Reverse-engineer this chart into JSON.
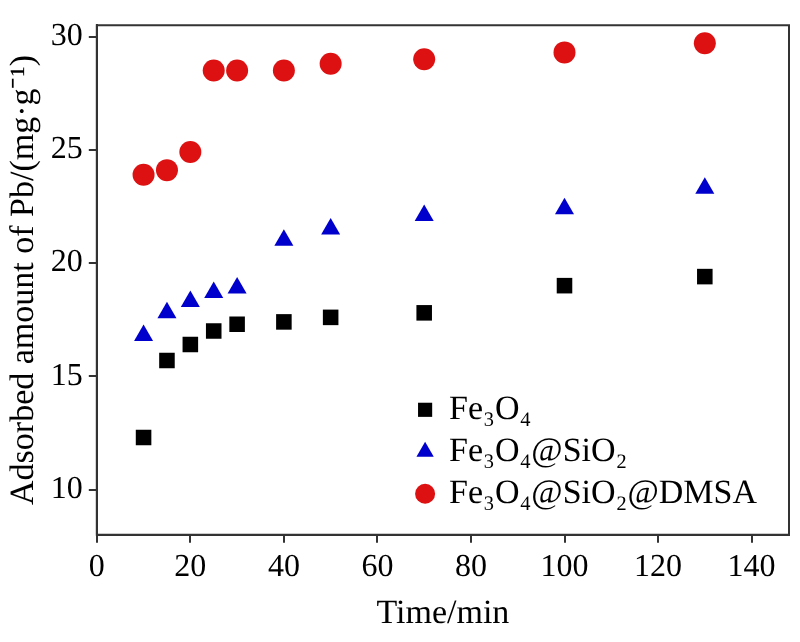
{
  "chart_data": {
    "type": "scatter",
    "xlabel": "Time/min",
    "ylabel": "Adsorbed amount of Pb/(mg·g⁻¹)",
    "x": [
      10,
      15,
      20,
      25,
      30,
      40,
      50,
      70,
      100,
      130
    ],
    "series": [
      {
        "name": "Fe₃O₄",
        "color": "#000000",
        "marker": "square",
        "values": [
          12.3,
          15.7,
          16.4,
          17.0,
          17.3,
          17.4,
          17.6,
          17.8,
          19.0,
          19.4
        ]
      },
      {
        "name": "Fe₃O₄@SiO₂",
        "color": "#0000cc",
        "marker": "triangle",
        "values": [
          16.8,
          17.8,
          18.3,
          18.7,
          18.9,
          21.0,
          21.5,
          22.1,
          22.4,
          23.3
        ]
      },
      {
        "name": "Fe₃O₄@SiO₂@DMSA",
        "color": "#dd1111",
        "marker": "circle",
        "values": [
          23.9,
          24.1,
          24.9,
          28.5,
          28.5,
          28.5,
          28.8,
          29.0,
          29.3,
          29.7
        ]
      }
    ],
    "xlim": [
      0,
      148
    ],
    "xticks": [
      0,
      20,
      40,
      60,
      80,
      100,
      120,
      140
    ],
    "ylim": [
      8,
      30.5
    ],
    "yticks": [
      10,
      15,
      20,
      25,
      30
    ],
    "grid": false,
    "legend": "bottom right"
  }
}
